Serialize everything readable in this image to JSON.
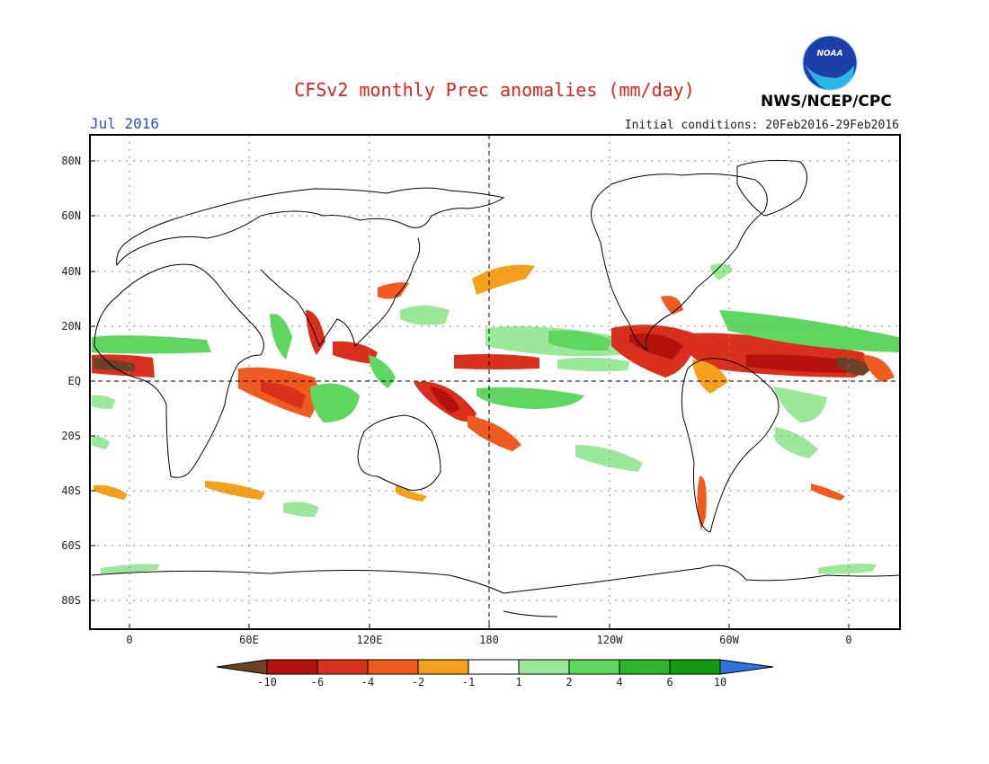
{
  "header": {
    "title": "CFSv2 monthly Prec anomalies (mm/day)",
    "month": "Jul 2016",
    "initial_conditions": "Initial conditions: 20Feb2016-29Feb2016",
    "agency": "NWS/NCEP/CPC",
    "logo_text": "NOAA"
  },
  "axes": {
    "lat_labels": [
      "80N",
      "60N",
      "40N",
      "20N",
      "EQ",
      "20S",
      "40S",
      "60S",
      "80S"
    ],
    "lon_labels": [
      "0",
      "60E",
      "120E",
      "180",
      "120W",
      "60W",
      "0"
    ]
  },
  "colorbar": {
    "labels": [
      "-10",
      "-6",
      "-4",
      "-2",
      "-1",
      "1",
      "2",
      "4",
      "6",
      "10"
    ],
    "colors": [
      "#6b4226",
      "#b5120d",
      "#d8301c",
      "#f05a1e",
      "#f5a01c",
      "#ffffff",
      "#9be89b",
      "#5fd65f",
      "#2eb52e",
      "#139a13",
      "#2f73e0"
    ]
  },
  "anomaly_colors": {
    "dry_strong": "#b5120d",
    "dry_moderate": "#f05a1e",
    "dry_weak": "#f5a01c",
    "wet_weak": "#9be89b",
    "wet_moderate": "#5fd65f",
    "wet_strong": "#2eb52e"
  }
}
